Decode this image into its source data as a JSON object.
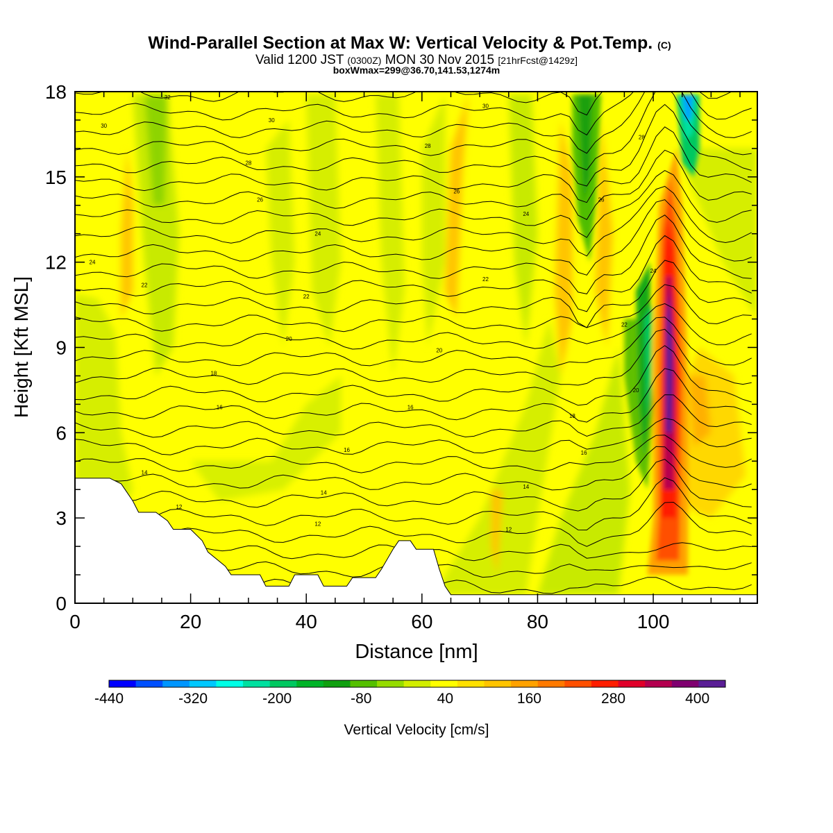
{
  "chart_data": {
    "type": "heatmap",
    "title": "Wind-Parallel Section at Max W: Vertical Velocity & Pot.Temp.",
    "title_mark": "(C)",
    "subtitle": {
      "main_a": "Valid 1200 JST",
      "zulu": "(0300Z)",
      "main_b": "MON 30 Nov 2015",
      "fcst": "[21hrFcst@1429z]"
    },
    "box_line": "boxWmax=299@36.70,141.53,1274m",
    "xlabel": "Distance [nm]",
    "ylabel": "Height [Kft MSL]",
    "xlim": [
      0,
      118
    ],
    "ylim": [
      0,
      18
    ],
    "x_ticks": [
      "0",
      "20",
      "40",
      "60",
      "80",
      "100"
    ],
    "y_ticks": [
      "0",
      "3",
      "6",
      "9",
      "12",
      "15",
      "18"
    ],
    "colorbar": {
      "label": "Vertical Velocity [cm/s]",
      "ticks": [
        "-440",
        "-320",
        "-200",
        "-80",
        "40",
        "160",
        "280",
        "400"
      ],
      "bins": [
        -440,
        -400,
        -360,
        -320,
        -280,
        -240,
        -200,
        -160,
        -120,
        -80,
        -40,
        0,
        40,
        80,
        120,
        160,
        200,
        240,
        280,
        320,
        360,
        400,
        440
      ],
      "colors": [
        "#0000ff",
        "#0050ff",
        "#0096ff",
        "#00c8ff",
        "#00ffe6",
        "#00e0a0",
        "#00c860",
        "#00b428",
        "#10a010",
        "#55c000",
        "#96dc00",
        "#d2ee00",
        "#ffff00",
        "#ffe000",
        "#ffc400",
        "#ffa200",
        "#ff7a00",
        "#ff5000",
        "#ff1e00",
        "#e0002a",
        "#b40050",
        "#800070",
        "#5a1e96"
      ]
    },
    "terrain_kft": [
      [
        0,
        4.4
      ],
      [
        6,
        4.4
      ],
      [
        8,
        4.2
      ],
      [
        9,
        3.9
      ],
      [
        10,
        3.6
      ],
      [
        11,
        3.2
      ],
      [
        14,
        3.2
      ],
      [
        16,
        2.9
      ],
      [
        17,
        2.6
      ],
      [
        20,
        2.6
      ],
      [
        22,
        2.2
      ],
      [
        23,
        1.8
      ],
      [
        26,
        1.3
      ],
      [
        27,
        1.0
      ],
      [
        32,
        1.0
      ],
      [
        33,
        0.6
      ],
      [
        37,
        0.6
      ],
      [
        38,
        1.0
      ],
      [
        42,
        1.0
      ],
      [
        43,
        0.6
      ],
      [
        47,
        0.6
      ],
      [
        48,
        0.9
      ],
      [
        52,
        0.9
      ],
      [
        53,
        1.2
      ],
      [
        55,
        1.9
      ],
      [
        56,
        2.2
      ],
      [
        58,
        2.2
      ],
      [
        59,
        1.9
      ],
      [
        62,
        1.9
      ],
      [
        63,
        1.2
      ],
      [
        64,
        0.6
      ],
      [
        65,
        0.3
      ],
      [
        118,
        0.3
      ]
    ],
    "theta_contours": [
      {
        "label": "12",
        "x": 42,
        "y": 2.8
      },
      {
        "label": "12",
        "x": 18,
        "y": 3.4
      },
      {
        "label": "12",
        "x": 75,
        "y": 2.6
      },
      {
        "label": "14",
        "x": 12,
        "y": 4.6
      },
      {
        "label": "14",
        "x": 43,
        "y": 3.9
      },
      {
        "label": "14",
        "x": 78,
        "y": 4.1
      },
      {
        "label": "16",
        "x": 47,
        "y": 5.4
      },
      {
        "label": "16",
        "x": 25,
        "y": 6.9
      },
      {
        "label": "16",
        "x": 58,
        "y": 6.9
      },
      {
        "label": "16",
        "x": 88,
        "y": 5.3
      },
      {
        "label": "18",
        "x": 24,
        "y": 8.1
      },
      {
        "label": "18",
        "x": 86,
        "y": 6.6
      },
      {
        "label": "20",
        "x": 37,
        "y": 9.3
      },
      {
        "label": "20",
        "x": 63,
        "y": 8.9
      },
      {
        "label": "20",
        "x": 97,
        "y": 7.5
      },
      {
        "label": "22",
        "x": 40,
        "y": 10.8
      },
      {
        "label": "22",
        "x": 12,
        "y": 11.2
      },
      {
        "label": "22",
        "x": 71,
        "y": 11.4
      },
      {
        "label": "22",
        "x": 95,
        "y": 9.8
      },
      {
        "label": "24",
        "x": 3,
        "y": 12.0
      },
      {
        "label": "24",
        "x": 42,
        "y": 13.0
      },
      {
        "label": "24",
        "x": 78,
        "y": 13.7
      },
      {
        "label": "24",
        "x": 100,
        "y": 11.7
      },
      {
        "label": "26",
        "x": 32,
        "y": 14.2
      },
      {
        "label": "26",
        "x": 66,
        "y": 14.5
      },
      {
        "label": "26",
        "x": 91,
        "y": 14.2
      },
      {
        "label": "28",
        "x": 30,
        "y": 15.5
      },
      {
        "label": "28",
        "x": 61,
        "y": 16.1
      },
      {
        "label": "28",
        "x": 98,
        "y": 16.4
      },
      {
        "label": "30",
        "x": 5,
        "y": 16.8
      },
      {
        "label": "30",
        "x": 34,
        "y": 17.0
      },
      {
        "label": "30",
        "x": 71,
        "y": 17.5
      },
      {
        "label": "32",
        "x": 16,
        "y": 17.8
      }
    ]
  }
}
